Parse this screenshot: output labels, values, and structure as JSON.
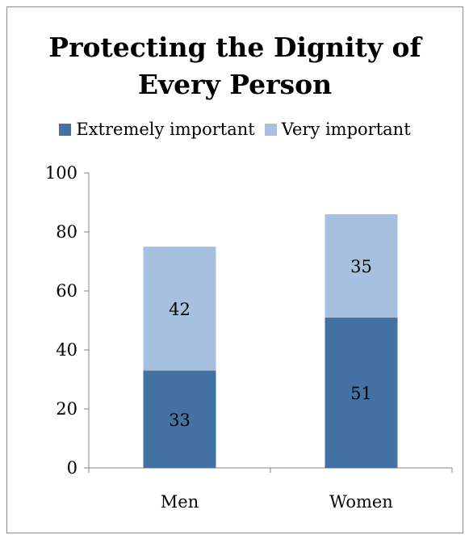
{
  "chart_data": {
    "type": "bar",
    "stacked": true,
    "title_lines": [
      "Protecting the Dignity of",
      "Every Person"
    ],
    "categories": [
      "Men",
      "Women"
    ],
    "series": [
      {
        "name": "Extremely important",
        "values": [
          33,
          51
        ],
        "color": "#4472a2"
      },
      {
        "name": "Very important",
        "values": [
          42,
          35
        ],
        "color": "#a7c0df"
      }
    ],
    "ylim": [
      0,
      100
    ],
    "yticks": [
      0,
      20,
      40,
      60,
      80,
      100
    ],
    "legend_position": "top",
    "grid": false
  }
}
